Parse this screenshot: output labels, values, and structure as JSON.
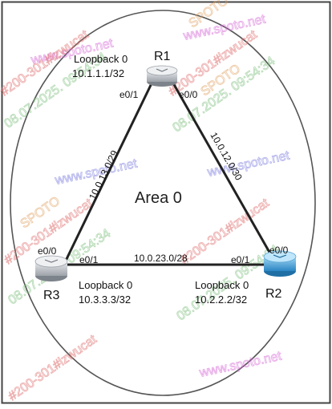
{
  "area": {
    "label": "Area 0"
  },
  "routers": {
    "r1": {
      "name": "R1",
      "loopback_title": "Loopback 0",
      "loopback_ip": "10.1.1.1/32",
      "if_left": "e0/1",
      "if_right": "e0/0"
    },
    "r2": {
      "name": "R2",
      "loopback_title": "Loopback 0",
      "loopback_ip": "10.2.2.2/32",
      "if_top": "e0/0",
      "if_left": "e0/1"
    },
    "r3": {
      "name": "R3",
      "loopback_title": "Loopback 0",
      "loopback_ip": "10.3.3.3/32",
      "if_top": "e0/0",
      "if_right": "e0/1"
    }
  },
  "links": {
    "r1_r3": "10.0.13.0/29",
    "r1_r2": "10.0.12.0/30",
    "r2_r3": "10.0.23.0/28"
  },
  "watermark": {
    "site": "www.spoto.net",
    "tag": "#200-301#lzwucat",
    "date": "08.07.2025. 09:54:34",
    "brand": "SPOTO"
  },
  "colors": {
    "router_grey": "#c9ccd1",
    "router_blue": "#4aa8d8",
    "link": "#222222"
  }
}
